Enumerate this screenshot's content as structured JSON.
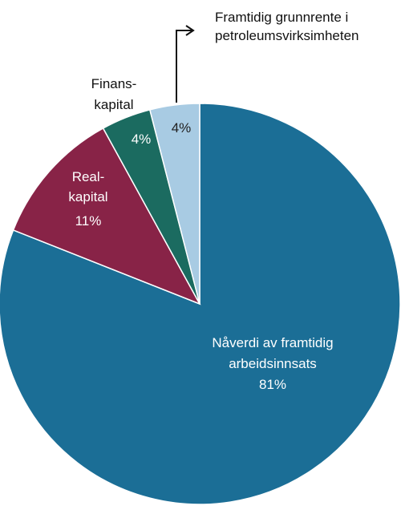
{
  "chart_data": {
    "type": "pie",
    "slices": [
      {
        "label_lines": [
          "Nåverdi av framtidig",
          "arbeidsinnsats"
        ],
        "value_label": "81%",
        "value": 81,
        "color": "#1b6e96"
      },
      {
        "label_lines": [
          "Real-",
          "kapital"
        ],
        "value_label": "11%",
        "value": 11,
        "color": "#882347"
      },
      {
        "label_lines": [
          "Finans-",
          "kapital"
        ],
        "value_label": "4%",
        "value": 4,
        "color": "#1b6b60"
      },
      {
        "label_lines": [
          "Framtidig grunnrente i",
          "petroleumsvirksimheten"
        ],
        "value_label": "4%",
        "value": 4,
        "color": "#a8cbe3"
      }
    ]
  }
}
